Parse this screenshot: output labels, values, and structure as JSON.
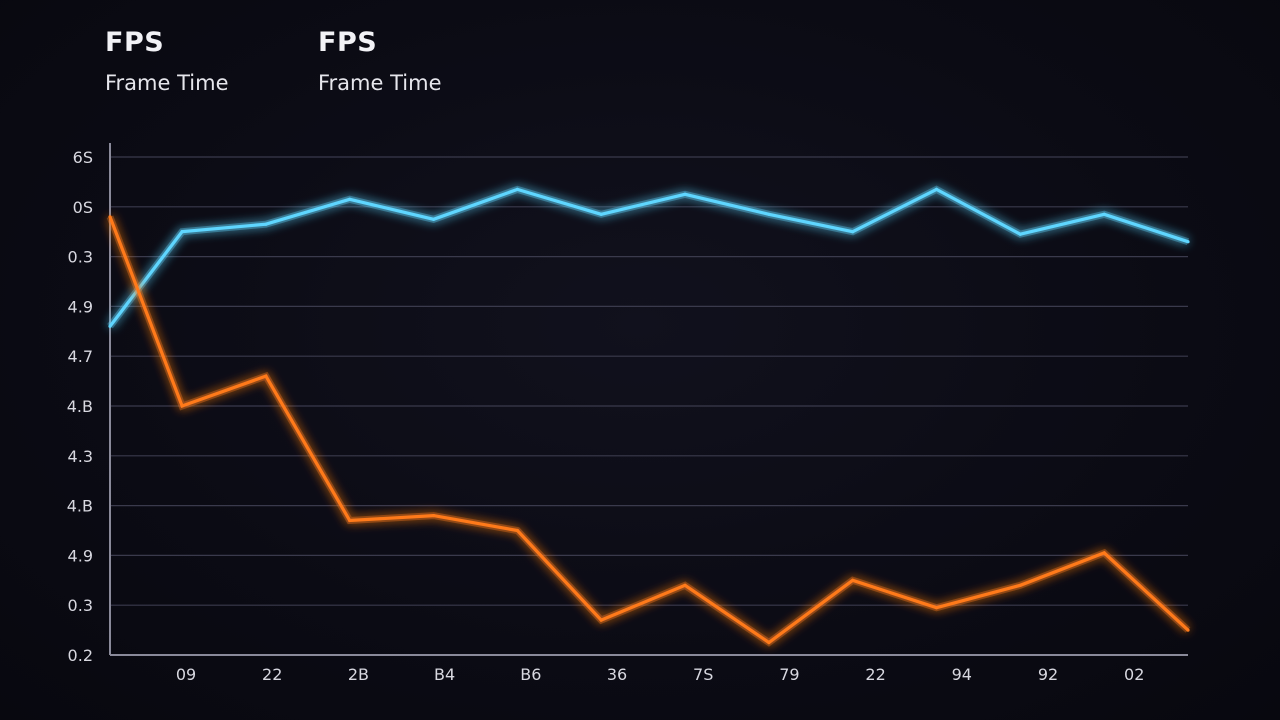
{
  "legend": [
    {
      "title": "FPS",
      "subtitle": "Frame Time"
    },
    {
      "title": "FPS",
      "subtitle": "Frame Time"
    }
  ],
  "colors": {
    "background": "#0b0b14",
    "fps_line": "#5fd6ff",
    "frame_time_line": "#ff7a1a",
    "grid": "#3a3a4c",
    "axis": "#8a8a9a"
  },
  "chart_data": {
    "type": "line",
    "title": "",
    "xlabel": "",
    "ylabel": "",
    "grid": true,
    "legend_position": "top-left",
    "y_tick_labels": [
      "6S",
      "0S",
      "0.3",
      "4.9",
      "4.7",
      "4.B",
      "4.3",
      "4.B",
      "4.9",
      "0.3",
      "0.2"
    ],
    "x_tick_labels": [
      "09",
      "22",
      "2B",
      "B4",
      "B6",
      "36",
      "7S",
      "79",
      "22",
      "94",
      "92",
      "02"
    ],
    "ylim_index": [
      0,
      10
    ],
    "series": [
      {
        "color": "#5fd6ff",
        "x": [
          0,
          0.86,
          1.86,
          2.86,
          3.86,
          4.86,
          5.86,
          6.86,
          7.86,
          8.86,
          9.86,
          10.86,
          11.86,
          12.86
        ],
        "values": [
          6.6,
          8.5,
          8.65,
          9.15,
          8.75,
          9.35,
          8.85,
          9.25,
          8.85,
          8.5,
          9.35,
          8.45,
          8.85,
          8.3
        ]
      },
      {
        "color": "#ff7a1a",
        "x": [
          0,
          0.86,
          1.86,
          2.86,
          3.86,
          4.86,
          5.86,
          6.86,
          7.86,
          8.86,
          9.86,
          10.86,
          11.86,
          12.86
        ],
        "values": [
          8.8,
          5.0,
          5.6,
          2.7,
          2.8,
          2.5,
          0.7,
          1.4,
          0.25,
          1.5,
          0.95,
          1.4,
          2.05,
          0.5
        ]
      }
    ],
    "x_range": [
      0,
      12.86
    ]
  }
}
